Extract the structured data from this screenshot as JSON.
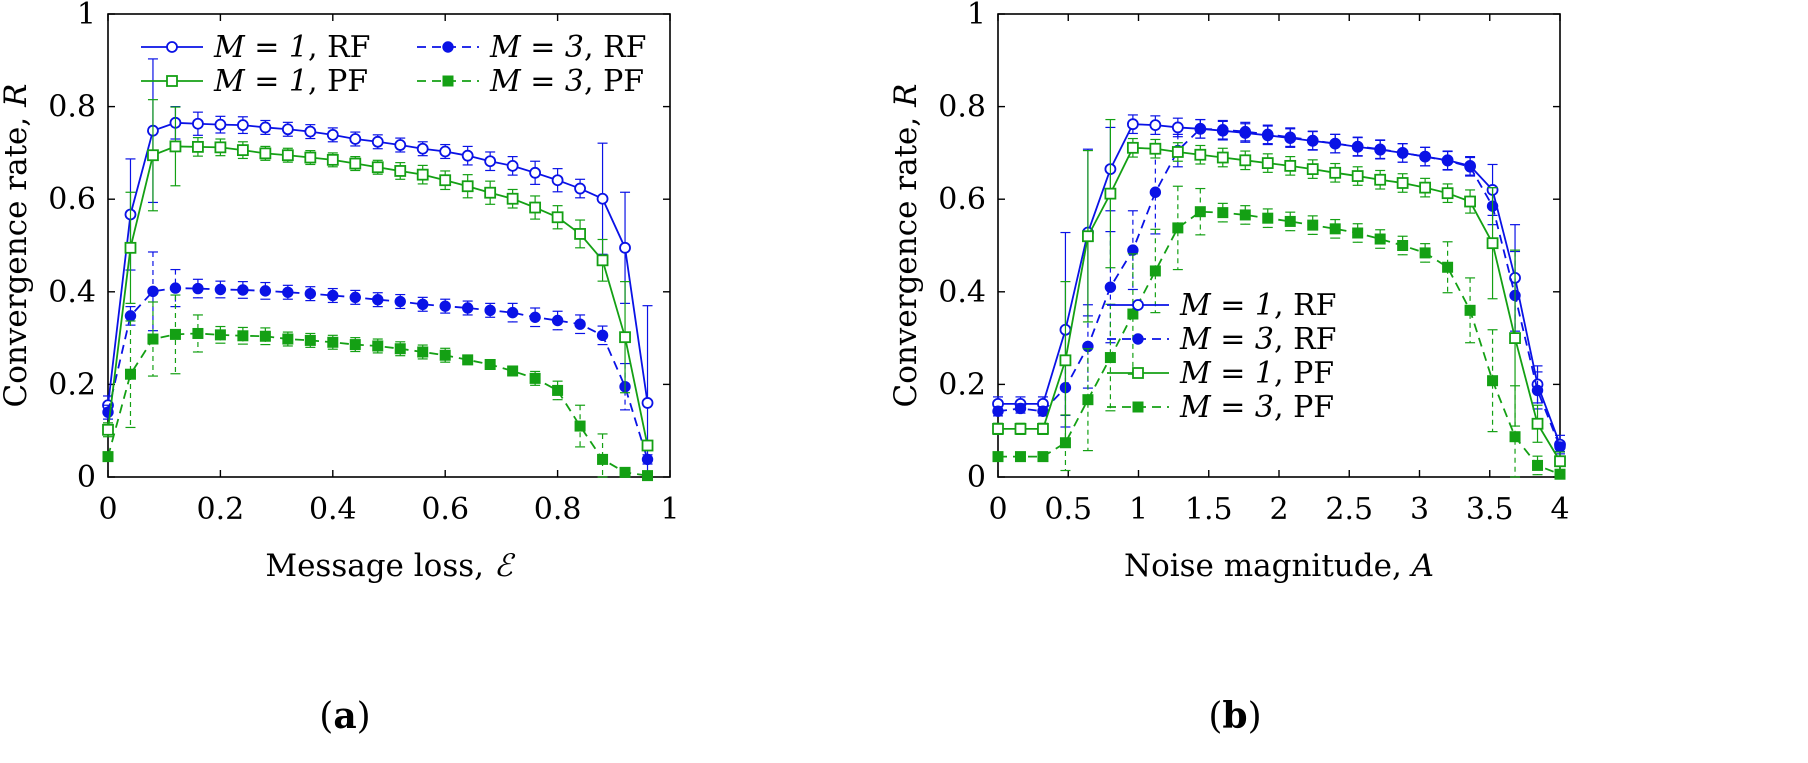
{
  "colors": {
    "rf": "#0a12e6",
    "pf": "#14a014"
  },
  "chart_data": [
    {
      "type": "line",
      "panel": "(a)",
      "panel_letter": "a",
      "xlabel": "Message loss, ",
      "xlabel_math": "ℰ",
      "ylabel": "Convergence rate, ",
      "ylabel_math": "R",
      "xlim": [
        0,
        1
      ],
      "ylim": [
        0,
        1
      ],
      "xticks": [
        0,
        0.2,
        0.4,
        0.6,
        0.8,
        1
      ],
      "xtick_labels": [
        "0",
        "0.2",
        "0.4",
        "0.6",
        "0.8",
        "1"
      ],
      "yticks": [
        0,
        0.2,
        0.4,
        0.6,
        0.8,
        1
      ],
      "ytick_labels": [
        "0",
        "0.2",
        "0.4",
        "0.6",
        "0.8",
        "1"
      ],
      "legend": {
        "layout": "two-column",
        "placement": "top-left"
      },
      "series": [
        {
          "name": "M = 1, RF",
          "math": "M = 1",
          "suffix": ", RF",
          "color": "rf",
          "marker": "circle-open",
          "dash": false,
          "x": [
            0,
            0.04,
            0.08,
            0.12,
            0.16,
            0.2,
            0.24,
            0.28,
            0.32,
            0.36,
            0.4,
            0.44,
            0.48,
            0.52,
            0.56,
            0.6,
            0.64,
            0.68,
            0.72,
            0.76,
            0.8,
            0.84,
            0.88,
            0.92,
            0.96
          ],
          "values": [
            0.155,
            0.567,
            0.748,
            0.765,
            0.763,
            0.761,
            0.76,
            0.755,
            0.751,
            0.746,
            0.739,
            0.73,
            0.724,
            0.717,
            0.709,
            0.703,
            0.694,
            0.682,
            0.672,
            0.657,
            0.641,
            0.623,
            0.601,
            0.495,
            0.16
          ],
          "err": [
            0.02,
            0.12,
            0.155,
            0.035,
            0.025,
            0.018,
            0.018,
            0.015,
            0.015,
            0.015,
            0.015,
            0.015,
            0.015,
            0.015,
            0.015,
            0.015,
            0.02,
            0.02,
            0.02,
            0.025,
            0.025,
            0.02,
            0.12,
            0.12,
            0.21
          ]
        },
        {
          "name": "M = 3, RF",
          "math": "M = 3",
          "suffix": ", RF",
          "color": "rf",
          "marker": "circle-filled",
          "dash": true,
          "x": [
            0,
            0.04,
            0.08,
            0.12,
            0.16,
            0.2,
            0.24,
            0.28,
            0.32,
            0.36,
            0.4,
            0.44,
            0.48,
            0.52,
            0.56,
            0.6,
            0.64,
            0.68,
            0.72,
            0.76,
            0.8,
            0.84,
            0.88,
            0.92,
            0.96
          ],
          "values": [
            0.14,
            0.348,
            0.401,
            0.408,
            0.407,
            0.405,
            0.404,
            0.402,
            0.399,
            0.396,
            0.392,
            0.388,
            0.383,
            0.379,
            0.373,
            0.369,
            0.365,
            0.36,
            0.355,
            0.345,
            0.338,
            0.33,
            0.306,
            0.195,
            0.038
          ],
          "err": [
            0.015,
            0.02,
            0.085,
            0.04,
            0.02,
            0.018,
            0.018,
            0.018,
            0.015,
            0.015,
            0.015,
            0.015,
            0.015,
            0.015,
            0.015,
            0.015,
            0.015,
            0.015,
            0.02,
            0.02,
            0.02,
            0.02,
            0.02,
            0.05,
            0.01
          ]
        },
        {
          "name": "M = 1, PF",
          "math": "M = 1",
          "suffix": ", PF",
          "color": "pf",
          "marker": "square-open",
          "dash": false,
          "x": [
            0,
            0.04,
            0.08,
            0.12,
            0.16,
            0.2,
            0.24,
            0.28,
            0.32,
            0.36,
            0.4,
            0.44,
            0.48,
            0.52,
            0.56,
            0.6,
            0.64,
            0.68,
            0.72,
            0.76,
            0.8,
            0.84,
            0.88,
            0.92,
            0.96
          ],
          "values": [
            0.102,
            0.495,
            0.695,
            0.714,
            0.713,
            0.712,
            0.706,
            0.699,
            0.695,
            0.69,
            0.685,
            0.677,
            0.669,
            0.661,
            0.653,
            0.641,
            0.628,
            0.614,
            0.601,
            0.582,
            0.561,
            0.525,
            0.468,
            0.302,
            0.068
          ],
          "err": [
            0.015,
            0.12,
            0.12,
            0.085,
            0.02,
            0.018,
            0.018,
            0.015,
            0.015,
            0.015,
            0.015,
            0.015,
            0.015,
            0.018,
            0.02,
            0.02,
            0.025,
            0.025,
            0.02,
            0.025,
            0.025,
            0.03,
            0.045,
            0.12,
            0.01
          ]
        },
        {
          "name": "M = 3, PF",
          "math": "M = 3",
          "suffix": ", PF",
          "color": "pf",
          "marker": "square-filled",
          "dash": true,
          "x": [
            0,
            0.04,
            0.08,
            0.12,
            0.16,
            0.2,
            0.24,
            0.28,
            0.32,
            0.36,
            0.4,
            0.44,
            0.48,
            0.52,
            0.56,
            0.6,
            0.64,
            0.68,
            0.72,
            0.76,
            0.8,
            0.84,
            0.88,
            0.92,
            0.96
          ],
          "values": [
            0.044,
            0.222,
            0.298,
            0.308,
            0.31,
            0.307,
            0.305,
            0.304,
            0.298,
            0.295,
            0.291,
            0.286,
            0.283,
            0.277,
            0.27,
            0.263,
            0.253,
            0.243,
            0.229,
            0.213,
            0.187,
            0.11,
            0.038,
            0.01,
            0.003
          ],
          "err": [
            0.01,
            0.115,
            0.08,
            0.085,
            0.04,
            0.018,
            0.018,
            0.018,
            0.015,
            0.015,
            0.015,
            0.015,
            0.015,
            0.015,
            0.015,
            0.015,
            0.01,
            0.01,
            0.01,
            0.015,
            0.02,
            0.045,
            0.055,
            0.005,
            0.003
          ]
        }
      ]
    },
    {
      "type": "line",
      "panel": "(b)",
      "panel_letter": "b",
      "xlabel": "Noise magnitude, ",
      "xlabel_math": "A",
      "ylabel": "Convergence rate, ",
      "ylabel_math": "R",
      "xlim": [
        0,
        4
      ],
      "ylim": [
        0,
        1
      ],
      "xticks": [
        0,
        0.5,
        1,
        1.5,
        2,
        2.5,
        3,
        3.5,
        4
      ],
      "xtick_labels": [
        "0",
        "0.5",
        "1",
        "1.5",
        "2",
        "2.5",
        "3",
        "3.5",
        "4"
      ],
      "yticks": [
        0,
        0.2,
        0.4,
        0.6,
        0.8,
        1
      ],
      "ytick_labels": [
        "0",
        "0.2",
        "0.4",
        "0.6",
        "0.8",
        "1"
      ],
      "legend": {
        "layout": "single-column",
        "placement": "center"
      },
      "series": [
        {
          "name": "M = 1, RF",
          "math": "M = 1",
          "suffix": ", RF",
          "color": "rf",
          "marker": "circle-open",
          "dash": false,
          "x": [
            0,
            0.16,
            0.32,
            0.48,
            0.64,
            0.8,
            0.96,
            1.12,
            1.28,
            1.44,
            1.6,
            1.76,
            1.92,
            2.08,
            2.24,
            2.4,
            2.56,
            2.72,
            2.88,
            3.04,
            3.2,
            3.36,
            3.52,
            3.68,
            3.84,
            4.0
          ],
          "values": [
            0.158,
            0.158,
            0.158,
            0.318,
            0.528,
            0.665,
            0.762,
            0.76,
            0.755,
            0.752,
            0.748,
            0.743,
            0.738,
            0.732,
            0.726,
            0.72,
            0.713,
            0.707,
            0.7,
            0.692,
            0.684,
            0.672,
            0.62,
            0.43,
            0.2,
            0.07
          ],
          "err": [
            0.015,
            0.015,
            0.015,
            0.21,
            0.18,
            0.09,
            0.02,
            0.02,
            0.02,
            0.02,
            0.02,
            0.02,
            0.02,
            0.02,
            0.02,
            0.02,
            0.02,
            0.02,
            0.02,
            0.02,
            0.02,
            0.02,
            0.055,
            0.115,
            0.04,
            0.02
          ]
        },
        {
          "name": "M = 3, RF",
          "math": "M = 3",
          "suffix": ", RF",
          "color": "rf",
          "marker": "circle-filled",
          "dash": true,
          "x": [
            0,
            0.16,
            0.32,
            0.48,
            0.64,
            0.8,
            0.96,
            1.12,
            1.28,
            1.44,
            1.6,
            1.76,
            1.92,
            2.08,
            2.24,
            2.4,
            2.56,
            2.72,
            2.88,
            3.04,
            3.2,
            3.36,
            3.52,
            3.68,
            3.84,
            4.0
          ],
          "values": [
            0.142,
            0.148,
            0.142,
            0.193,
            0.282,
            0.41,
            0.49,
            0.615,
            0.705,
            0.752,
            0.75,
            0.746,
            0.74,
            0.734,
            0.727,
            0.72,
            0.714,
            0.708,
            0.7,
            0.692,
            0.683,
            0.67,
            0.585,
            0.392,
            0.187,
            0.065
          ],
          "err": [
            0.01,
            0.01,
            0.01,
            0.06,
            0.09,
            0.12,
            0.085,
            0.09,
            0.035,
            0.02,
            0.02,
            0.02,
            0.02,
            0.02,
            0.02,
            0.02,
            0.02,
            0.02,
            0.02,
            0.02,
            0.02,
            0.02,
            0.04,
            0.095,
            0.04,
            0.01
          ]
        },
        {
          "name": "M = 1, PF",
          "math": "M = 1",
          "suffix": ", PF",
          "color": "pf",
          "marker": "square-open",
          "dash": false,
          "x": [
            0,
            0.16,
            0.32,
            0.48,
            0.64,
            0.8,
            0.96,
            1.12,
            1.28,
            1.44,
            1.6,
            1.76,
            1.92,
            2.08,
            2.24,
            2.4,
            2.56,
            2.72,
            2.88,
            3.04,
            3.2,
            3.36,
            3.52,
            3.68,
            3.84,
            4.0
          ],
          "values": [
            0.104,
            0.104,
            0.104,
            0.252,
            0.52,
            0.612,
            0.711,
            0.709,
            0.702,
            0.696,
            0.69,
            0.684,
            0.678,
            0.672,
            0.665,
            0.657,
            0.65,
            0.642,
            0.635,
            0.625,
            0.613,
            0.595,
            0.505,
            0.3,
            0.115,
            0.034
          ],
          "err": [
            0.012,
            0.012,
            0.012,
            0.17,
            0.185,
            0.16,
            0.02,
            0.02,
            0.02,
            0.02,
            0.02,
            0.02,
            0.02,
            0.02,
            0.02,
            0.02,
            0.02,
            0.02,
            0.02,
            0.02,
            0.02,
            0.025,
            0.12,
            0.19,
            0.04,
            0.02
          ]
        },
        {
          "name": "M = 3, PF",
          "math": "M = 3",
          "suffix": ", PF",
          "color": "pf",
          "marker": "square-filled",
          "dash": true,
          "x": [
            0,
            0.16,
            0.32,
            0.48,
            0.64,
            0.8,
            0.96,
            1.12,
            1.28,
            1.44,
            1.6,
            1.76,
            1.92,
            2.08,
            2.24,
            2.4,
            2.56,
            2.72,
            2.88,
            3.04,
            3.2,
            3.36,
            3.52,
            3.68,
            3.84,
            4.0
          ],
          "values": [
            0.044,
            0.044,
            0.044,
            0.074,
            0.167,
            0.258,
            0.352,
            0.445,
            0.538,
            0.573,
            0.571,
            0.566,
            0.559,
            0.552,
            0.544,
            0.536,
            0.527,
            0.514,
            0.5,
            0.484,
            0.453,
            0.36,
            0.208,
            0.087,
            0.025,
            0.006
          ],
          "err": [
            0.01,
            0.01,
            0.01,
            0.06,
            0.11,
            0.115,
            0.13,
            0.09,
            0.09,
            0.05,
            0.02,
            0.02,
            0.02,
            0.02,
            0.02,
            0.02,
            0.02,
            0.02,
            0.02,
            0.02,
            0.055,
            0.07,
            0.11,
            0.11,
            0.02,
            0.005
          ]
        }
      ]
    }
  ]
}
